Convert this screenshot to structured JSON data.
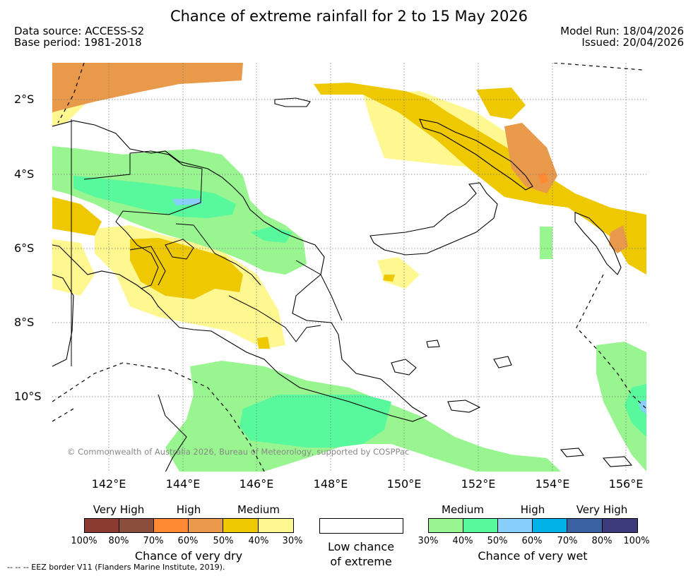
{
  "title": "Chance of extreme rainfall for 2 to 15 May 2026",
  "data_source": "Data source: ACCESS-S2",
  "base_period": "Base period: 1981-2018",
  "model_run": "Model Run: 18/04/2026",
  "issued": "Issued: 20/04/2026",
  "lat_labels": [
    "2°S",
    "4°S",
    "6°S",
    "8°S",
    "10°S"
  ],
  "lon_labels": [
    "142°E",
    "144°E",
    "146°E",
    "148°E",
    "150°E",
    "152°E",
    "154°E",
    "156°E"
  ],
  "copyright": "© Commonwealth of Australia 2026, Bureau of Meteorology, supported by COSPPac",
  "legend": {
    "dry": {
      "levels": [
        "Very High",
        "High",
        "Medium"
      ],
      "colors": [
        "#8b3a30",
        "#8b4e3c",
        "#ff8a33",
        "#e8994a",
        "#eec800",
        "#fff78f"
      ],
      "ticks": [
        "100%",
        "80%",
        "70%",
        "60%",
        "50%",
        "40%",
        "30%"
      ],
      "title": "Chance of very dry"
    },
    "low": {
      "line1": "Low chance",
      "line2": "of extreme"
    },
    "wet": {
      "levels": [
        "Medium",
        "High",
        "Very High"
      ],
      "colors": [
        "#99f58f",
        "#57f99c",
        "#87cefa",
        "#00b2e8",
        "#3a62a2",
        "#3d3a7c"
      ],
      "ticks": [
        "30%",
        "40%",
        "50%",
        "60%",
        "70%",
        "80%",
        "100%"
      ],
      "title": "Chance of very wet"
    }
  },
  "footnote": "-- -- -- EEZ border V11 (Flanders Marine Institute, 2019).",
  "colors": {
    "medium_dry": "#eec800",
    "low_dry": "#fff78f",
    "high_dry": "#e8994a",
    "vhigh_dry": "#ff8a33",
    "medium_wet": "#99f58f",
    "high_wet": "#57f99c",
    "vhigh_wet": "#87cefa"
  }
}
